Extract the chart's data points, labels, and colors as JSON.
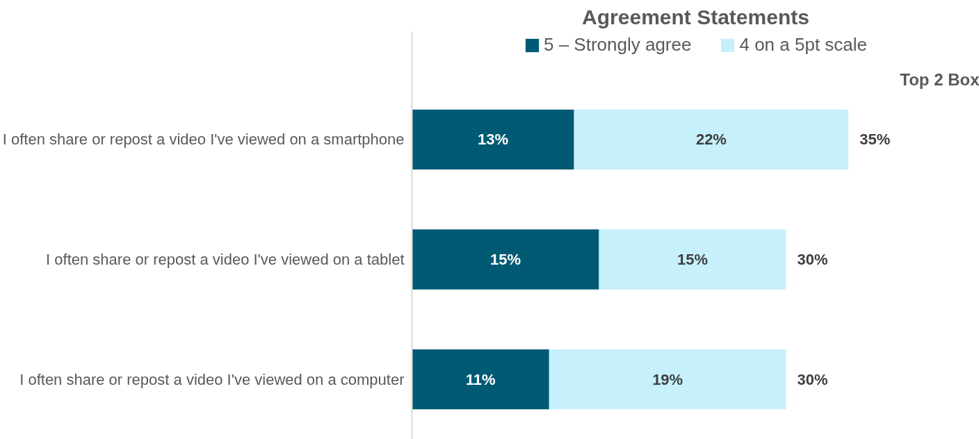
{
  "chart_data": {
    "type": "bar",
    "orientation": "horizontal",
    "stacked": true,
    "title": "Agreement Statements",
    "categories": [
      "I often share or repost a video I've viewed on a smartphone",
      "I often share or repost a video I've viewed on a tablet",
      "I often share or repost a video I've viewed on a computer"
    ],
    "series": [
      {
        "name": "5 – Strongly agree",
        "color": "#005a73",
        "values": [
          13,
          15,
          11
        ],
        "value_labels": [
          "13%",
          "15%",
          "11%"
        ]
      },
      {
        "name": "4 on a 5pt scale",
        "color": "#c6f0fc",
        "values": [
          22,
          15,
          19
        ],
        "value_labels": [
          "22%",
          "15%",
          "19%"
        ]
      }
    ],
    "totals": [
      "35%",
      "30%",
      "30%"
    ],
    "annotations": [
      "Top 2 Box"
    ],
    "tick_labels": "y",
    "grid": false,
    "legend": "top"
  }
}
